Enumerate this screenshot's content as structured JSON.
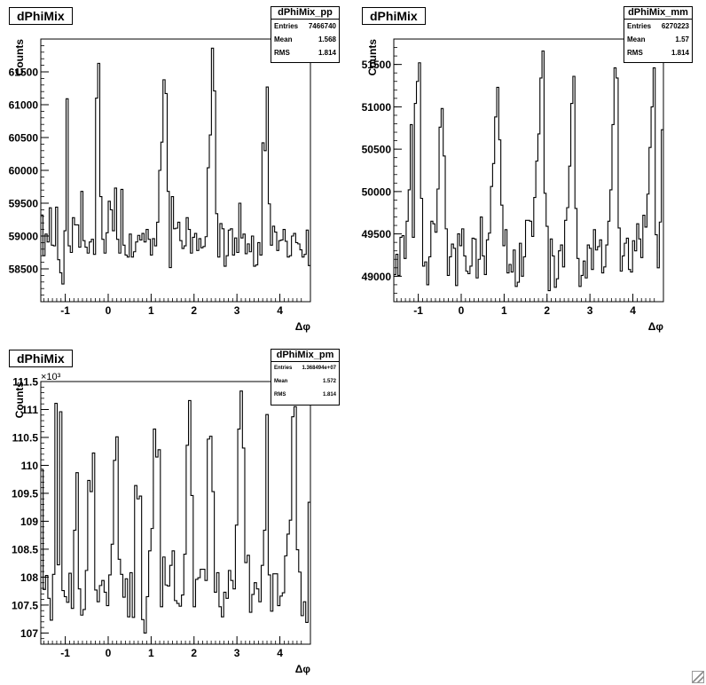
{
  "panels": [
    {
      "title": "dPhiMix",
      "stats": {
        "name": "dPhiMix_pp",
        "entries_label": "Entries",
        "entries": "7466740",
        "mean_label": "Mean",
        "mean": "1.568",
        "rms_label": "RMS",
        "rms": "1.814"
      },
      "ylabel": "Counts",
      "xlabel": "Δφ",
      "exponent_label": ""
    },
    {
      "title": "dPhiMix",
      "stats": {
        "name": "dPhiMix_mm",
        "entries_label": "Entries",
        "entries": "6270223",
        "mean_label": "Mean",
        "mean": "1.57",
        "rms_label": "RMS",
        "rms": "1.814"
      },
      "ylabel": "Counts",
      "xlabel": "Δφ",
      "exponent_label": ""
    },
    {
      "title": "dPhiMix",
      "stats": {
        "name": "dPhiMix_pm",
        "entries_label": "Entries",
        "entries": "1.368494e+07",
        "mean_label": "Mean",
        "mean": "1.572",
        "rms_label": "RMS",
        "rms": "1.814"
      },
      "ylabel": "Counts",
      "xlabel": "Δφ",
      "exponent_label": "×10³"
    }
  ],
  "chart_data": [
    {
      "type": "line",
      "title": "dPhiMix",
      "xlabel": "Δφ",
      "ylabel": "Counts",
      "xlim": [
        -1.5708,
        4.7124
      ],
      "ylim": [
        58000,
        62000
      ],
      "x_ticks": [
        -1,
        0,
        1,
        2,
        3,
        4
      ],
      "y_ticks": [
        58500,
        59000,
        59500,
        60000,
        60500,
        61000,
        61500
      ],
      "y_tick_labels": [
        "58500",
        "59000",
        "59500",
        "60000",
        "60500",
        "61000",
        "61500"
      ],
      "grid": false,
      "series": [
        {
          "values": [
            59320,
            58700,
            59030,
            58910,
            59430,
            58860,
            58850,
            59440,
            58640,
            58440,
            58270,
            59080,
            61090,
            58850,
            58750,
            59280,
            59170,
            59170,
            58830,
            59680,
            58930,
            58830,
            58740,
            58910,
            58950,
            58720,
            61100,
            61630,
            59600,
            58950,
            58740,
            59050,
            59530,
            59400,
            59080,
            59730,
            58950,
            58740,
            59710,
            58860,
            58710,
            58680,
            59030,
            58680,
            58760,
            58910,
            59010,
            58940,
            59040,
            58910,
            59100,
            58950,
            58710,
            58960,
            58850,
            59210,
            60000,
            60430,
            61380,
            61170,
            59680,
            58520,
            59600,
            59110,
            59120,
            59210,
            58930,
            58810,
            58850,
            59280,
            59100,
            58740,
            58980,
            59040,
            58780,
            58960,
            58820,
            58840,
            58990,
            60040,
            60540,
            61860,
            61210,
            59340,
            58680,
            59190,
            59110,
            58540,
            58700,
            59090,
            59110,
            58710,
            58970,
            58750,
            59500,
            58970,
            59030,
            58730,
            58880,
            58760,
            59000,
            58540,
            58560,
            58900,
            58710,
            60420,
            60300,
            61270,
            59490,
            58860,
            59150,
            59060,
            58780,
            58930,
            58940,
            59100,
            58920,
            58680,
            58700,
            59000,
            59040,
            58900,
            58880,
            58790,
            58680,
            58720,
            59090,
            58550
          ]
        }
      ]
    },
    {
      "type": "line",
      "title": "dPhiMix",
      "xlabel": "Δφ",
      "ylabel": "Counts",
      "xlim": [
        -1.5708,
        4.7124
      ],
      "ylim": [
        48700,
        51800
      ],
      "x_ticks": [
        -1,
        0,
        1,
        2,
        3,
        4
      ],
      "y_ticks": [
        49000,
        49500,
        50000,
        50500,
        51000,
        51500
      ],
      "y_tick_labels": [
        "49000",
        "49500",
        "50000",
        "50500",
        "51000",
        "51500"
      ],
      "grid": false,
      "series": [
        {
          "values": [
            49020,
            49260,
            49010,
            49460,
            49480,
            49210,
            49650,
            50020,
            50790,
            49460,
            51040,
            51300,
            51520,
            49920,
            49120,
            49170,
            48900,
            49230,
            49650,
            49620,
            49520,
            50030,
            50760,
            50980,
            50420,
            49560,
            49010,
            49230,
            49380,
            49330,
            48890,
            49500,
            49360,
            49560,
            49240,
            49060,
            49030,
            49120,
            49450,
            49440,
            48980,
            49200,
            49700,
            49240,
            49020,
            49430,
            49510,
            50060,
            50330,
            50880,
            51230,
            50610,
            49840,
            49360,
            49550,
            49040,
            49140,
            49050,
            49310,
            48880,
            48930,
            49390,
            49000,
            49230,
            49660,
            49660,
            49650,
            49470,
            49930,
            50360,
            50680,
            51340,
            51660,
            49980,
            49590,
            48830,
            49440,
            49240,
            48870,
            48970,
            49300,
            49370,
            49110,
            49660,
            49810,
            50300,
            51040,
            51360,
            49800,
            49210,
            48880,
            49010,
            49180,
            48980,
            49370,
            49330,
            49080,
            49550,
            49310,
            49350,
            49430,
            49040,
            49110,
            49370,
            49650,
            50020,
            50790,
            51460,
            51340,
            49570,
            49060,
            49240,
            49390,
            49450,
            49080,
            49050,
            49420,
            49300,
            49620,
            49440,
            49220,
            49720,
            49580,
            49970,
            50520,
            51000,
            51460,
            49490,
            49100,
            49640,
            50730
          ]
        }
      ]
    },
    {
      "type": "line",
      "title": "dPhiMix",
      "xlabel": "Δφ",
      "ylabel": "Counts",
      "xlim": [
        -1.5708,
        4.7124
      ],
      "ylim": [
        106.8,
        111.5
      ],
      "y_scale_note": "×10³",
      "x_ticks": [
        -1,
        0,
        1,
        2,
        3,
        4
      ],
      "y_ticks": [
        107,
        107.5,
        108,
        108.5,
        109,
        109.5,
        110,
        110.5,
        111,
        111.5
      ],
      "y_tick_labels": [
        "107",
        "107.5",
        "108",
        "108.5",
        "109",
        "109.5",
        "110",
        "110.5",
        "111",
        "111.5"
      ],
      "grid": false,
      "series": [
        {
          "values": [
            109.93,
            107.78,
            108.03,
            107.62,
            107.23,
            108.05,
            111.11,
            108.22,
            110.96,
            107.76,
            107.65,
            107.55,
            108.07,
            107.44,
            108.84,
            109.87,
            107.79,
            107.32,
            107.42,
            108.12,
            109.73,
            109.53,
            110.22,
            107.77,
            107.56,
            107.85,
            107.94,
            107.73,
            107.49,
            108.04,
            108.59,
            110.09,
            110.51,
            108.32,
            108.05,
            107.64,
            107.97,
            107.29,
            108.08,
            107.28,
            109.64,
            109.4,
            109.45,
            107.24,
            107.0,
            107.65,
            108.47,
            108.87,
            110.65,
            110.15,
            110.28,
            107.47,
            108.36,
            107.86,
            107.84,
            108.21,
            108.47,
            107.58,
            107.53,
            107.48,
            107.68,
            108.41,
            110.36,
            111.16,
            109.46,
            107.47,
            107.96,
            107.99,
            108.14,
            108.14,
            107.94,
            110.47,
            110.52,
            109.53,
            107.73,
            108.08,
            107.47,
            107.29,
            107.73,
            107.62,
            108.12,
            107.94,
            107.79,
            108.93,
            110.65,
            111.33,
            110.31,
            108.26,
            108.39,
            107.37,
            107.69,
            107.9,
            107.79,
            107.56,
            108.21,
            108.84,
            110.91,
            108.04,
            107.39,
            108.06,
            108.06,
            107.49,
            107.66,
            107.72,
            108.38,
            108.77,
            109.02,
            110.87,
            111.05,
            108.49,
            108.09,
            107.31,
            107.56,
            107.19,
            109.34
          ]
        }
      ]
    }
  ]
}
